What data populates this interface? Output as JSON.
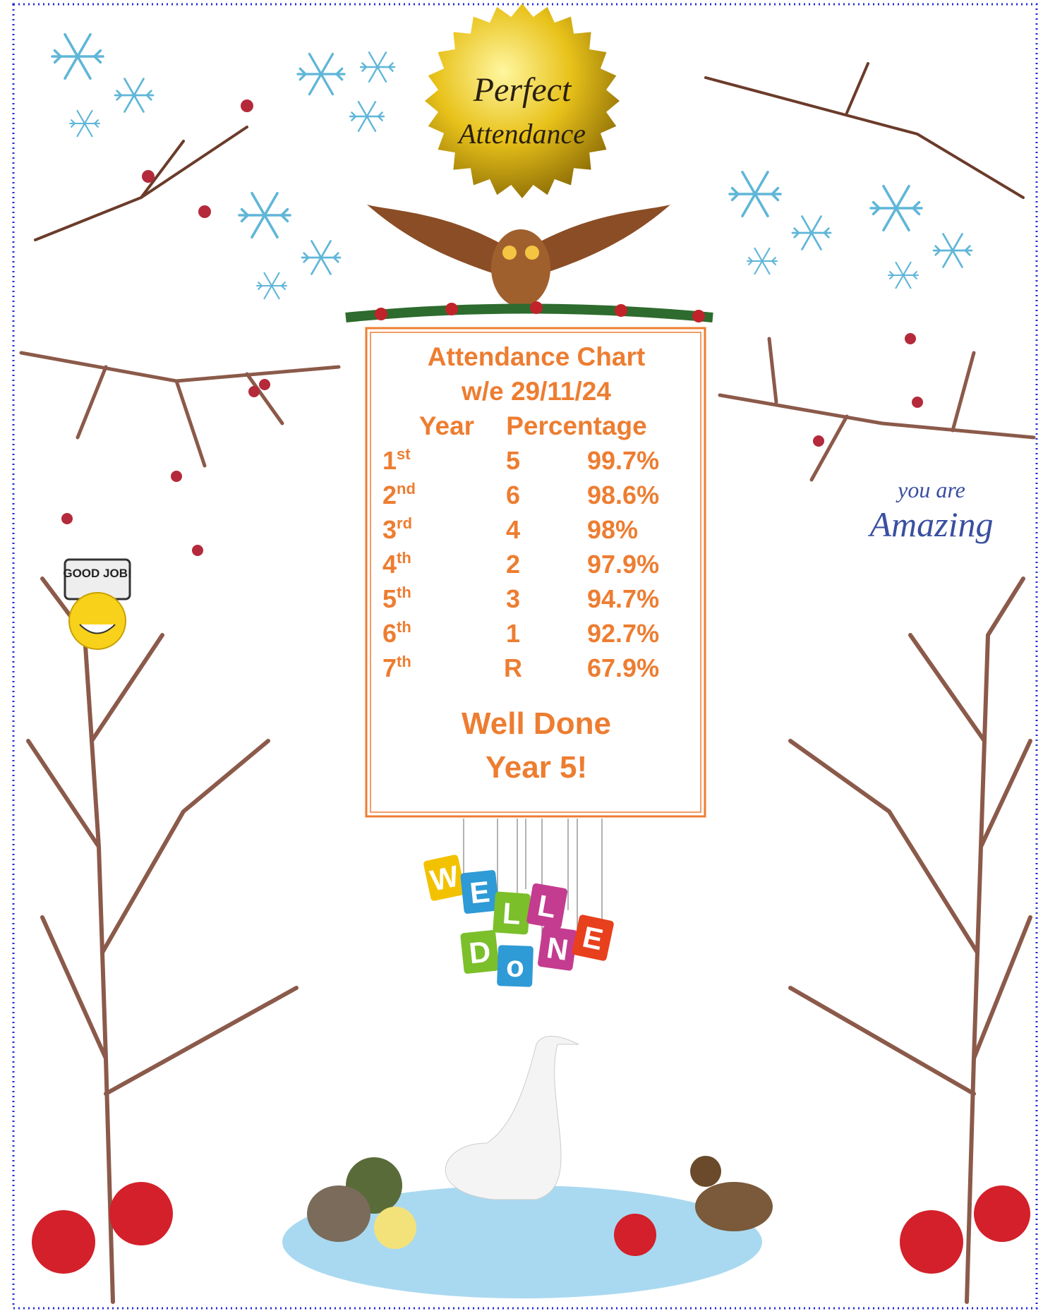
{
  "badge": {
    "line1": "Perfect",
    "line2": "Attendance"
  },
  "chart": {
    "title": "Attendance Chart",
    "subtitle": "w/e 29/11/24",
    "headers": [
      "Year",
      "Percentage"
    ],
    "rows": [
      {
        "rank": "1",
        "suffix": "st",
        "year": "5",
        "percentage": "99.7%"
      },
      {
        "rank": "2",
        "suffix": "nd",
        "year": "6",
        "percentage": "98.6%"
      },
      {
        "rank": "3",
        "suffix": "rd",
        "year": "4",
        "percentage": "98%"
      },
      {
        "rank": "4",
        "suffix": "th",
        "year": "2",
        "percentage": "97.9%"
      },
      {
        "rank": "5",
        "suffix": "th",
        "year": "3",
        "percentage": "94.7%"
      },
      {
        "rank": "6",
        "suffix": "th",
        "year": "1",
        "percentage": "92.7%"
      },
      {
        "rank": "7",
        "suffix": "th",
        "year": "R",
        "percentage": "67.9%"
      }
    ],
    "footer": [
      "Well Done",
      "Year 5!"
    ]
  },
  "good_job": "GOOD JOB!",
  "amazing": {
    "line1": "you are",
    "line2": "Amazing"
  },
  "sign": {
    "top": [
      "W",
      "E",
      "L",
      "L"
    ],
    "bottom": [
      "D",
      "o",
      "N",
      "E"
    ]
  }
}
